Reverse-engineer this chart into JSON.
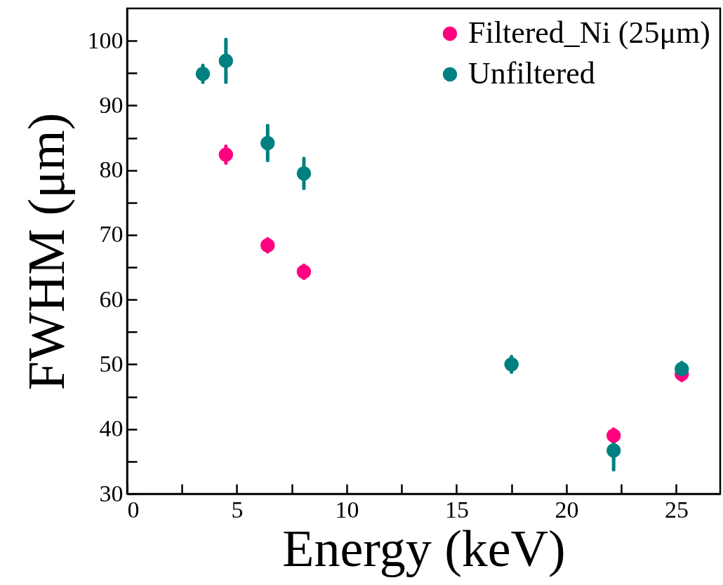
{
  "chart_data": {
    "type": "scatter",
    "xlabel": "Energy (keV)",
    "ylabel": "FWHM (μm)",
    "xlim": [
      0,
      27
    ],
    "ylim": [
      30,
      105
    ],
    "xticks": [
      0,
      {
        "value": 2.5,
        "label": null
      },
      5,
      {
        "value": 7.5,
        "label": null
      },
      10,
      {
        "value": 12.5,
        "label": null
      },
      15,
      {
        "value": 17.5,
        "label": null
      },
      20,
      {
        "value": 22.5,
        "label": null
      },
      25
    ],
    "yticks": [
      30,
      {
        "value": 35,
        "label": null
      },
      40,
      {
        "value": 45,
        "label": null
      },
      50,
      {
        "value": 55,
        "label": null
      },
      60,
      {
        "value": 65,
        "label": null
      },
      70,
      {
        "value": 75,
        "label": null
      },
      80,
      {
        "value": 85,
        "label": null
      },
      90,
      {
        "value": 95,
        "label": null
      },
      100
    ],
    "series": [
      {
        "name": "Filtered_Ni (25μm)",
        "color": "#ff0080",
        "x": [
          4.5,
          6.4,
          8.05,
          22.15,
          25.25
        ],
        "values": [
          82.4,
          68.4,
          64.3,
          39.0,
          48.5
        ],
        "errors": [
          1.3,
          1,
          1,
          1,
          1
        ]
      },
      {
        "name": "Unfiltered",
        "color": "#008080",
        "x": [
          3.45,
          4.5,
          6.4,
          8.05,
          17.5,
          22.15,
          25.25
        ],
        "values": [
          94.9,
          96.9,
          84.2,
          79.5,
          50.0,
          36.7,
          49.3
        ],
        "errors": [
          1.3,
          3.3,
          2.7,
          2.3,
          1.2,
          3,
          1
        ]
      }
    ],
    "legend": "top right",
    "grid": false,
    "marker": "circle"
  }
}
